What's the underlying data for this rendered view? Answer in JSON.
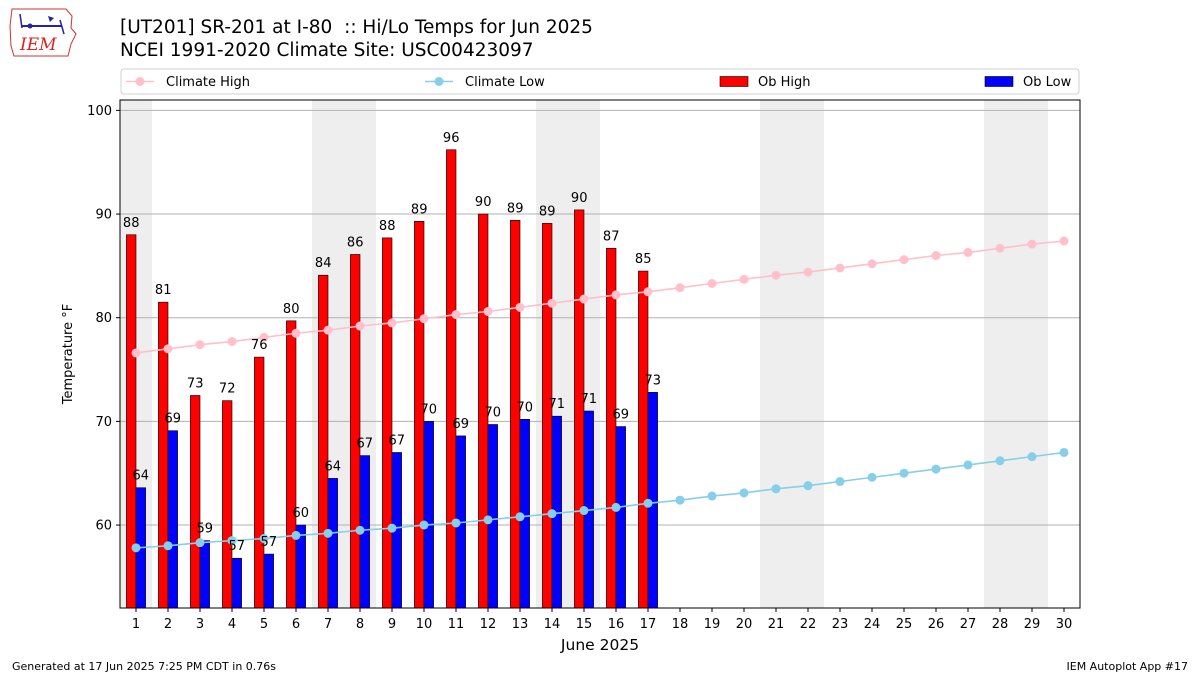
{
  "header": {
    "title_line1": "[UT201] SR-201 at I-80  :: Hi/Lo Temps for Jun 2025",
    "title_line2": "NCEI 1991-2020 Climate Site: USC00423097",
    "logo_text": "IEM"
  },
  "footer": {
    "left": "Generated at 17 Jun 2025 7:25 PM CDT in 0.76s",
    "right": "IEM Autoplot App #17"
  },
  "colors": {
    "ob_high": "#ff0000",
    "ob_low": "#0000ff",
    "climate_high": "#ffc0cb",
    "climate_low": "#87ceeb",
    "weekend_shade": "#eeeeee",
    "grid": "#b0b0b0"
  },
  "chart_data": {
    "type": "bar",
    "xlabel": "June 2025",
    "ylabel": "Temperature °F",
    "ylim": [
      52,
      101
    ],
    "yticks": [
      60,
      70,
      80,
      90,
      100
    ],
    "grid": "horizontal",
    "legend_position": "top",
    "categories": [
      1,
      2,
      3,
      4,
      5,
      6,
      7,
      8,
      9,
      10,
      11,
      12,
      13,
      14,
      15,
      16,
      17,
      18,
      19,
      20,
      21,
      22,
      23,
      24,
      25,
      26,
      27,
      28,
      29,
      30
    ],
    "weekend_days": [
      1,
      7,
      8,
      14,
      15,
      21,
      22,
      28,
      29
    ],
    "ob_high": {
      "name": "Ob High",
      "values": [
        88,
        81.5,
        72.5,
        72,
        76.2,
        79.7,
        84.1,
        86.1,
        87.7,
        89.3,
        96.2,
        90,
        89.4,
        89.1,
        90.4,
        86.7,
        84.5
      ],
      "labels": [
        "88",
        "81",
        "73",
        "72",
        "76",
        "80",
        "84",
        "86",
        "88",
        "89",
        "96",
        "90",
        "89",
        "89",
        "90",
        "87",
        "85"
      ]
    },
    "ob_low": {
      "name": "Ob Low",
      "values": [
        63.6,
        69.1,
        58.5,
        56.8,
        57.2,
        60,
        64.5,
        66.7,
        67,
        70,
        68.6,
        69.7,
        70.2,
        70.5,
        71,
        69.5,
        72.8
      ],
      "labels": [
        "64",
        "69",
        "59",
        "57",
        "57",
        "60",
        "64",
        "67",
        "67",
        "70",
        "69",
        "70",
        "70",
        "71",
        "71",
        "69",
        "73"
      ]
    },
    "climate_high": {
      "name": "Climate High",
      "values": [
        76.6,
        77.0,
        77.4,
        77.7,
        78.1,
        78.5,
        78.8,
        79.2,
        79.5,
        79.9,
        80.3,
        80.6,
        81.0,
        81.4,
        81.8,
        82.2,
        82.5,
        82.9,
        83.3,
        83.7,
        84.1,
        84.4,
        84.8,
        85.2,
        85.6,
        86.0,
        86.3,
        86.7,
        87.1,
        87.4
      ]
    },
    "climate_low": {
      "name": "Climate Low",
      "values": [
        57.8,
        58.0,
        58.3,
        58.5,
        58.7,
        59.0,
        59.2,
        59.5,
        59.7,
        60.0,
        60.2,
        60.5,
        60.8,
        61.1,
        61.4,
        61.7,
        62.1,
        62.4,
        62.8,
        63.1,
        63.5,
        63.8,
        64.2,
        64.6,
        65.0,
        65.4,
        65.8,
        66.2,
        66.6,
        67.0
      ]
    }
  }
}
